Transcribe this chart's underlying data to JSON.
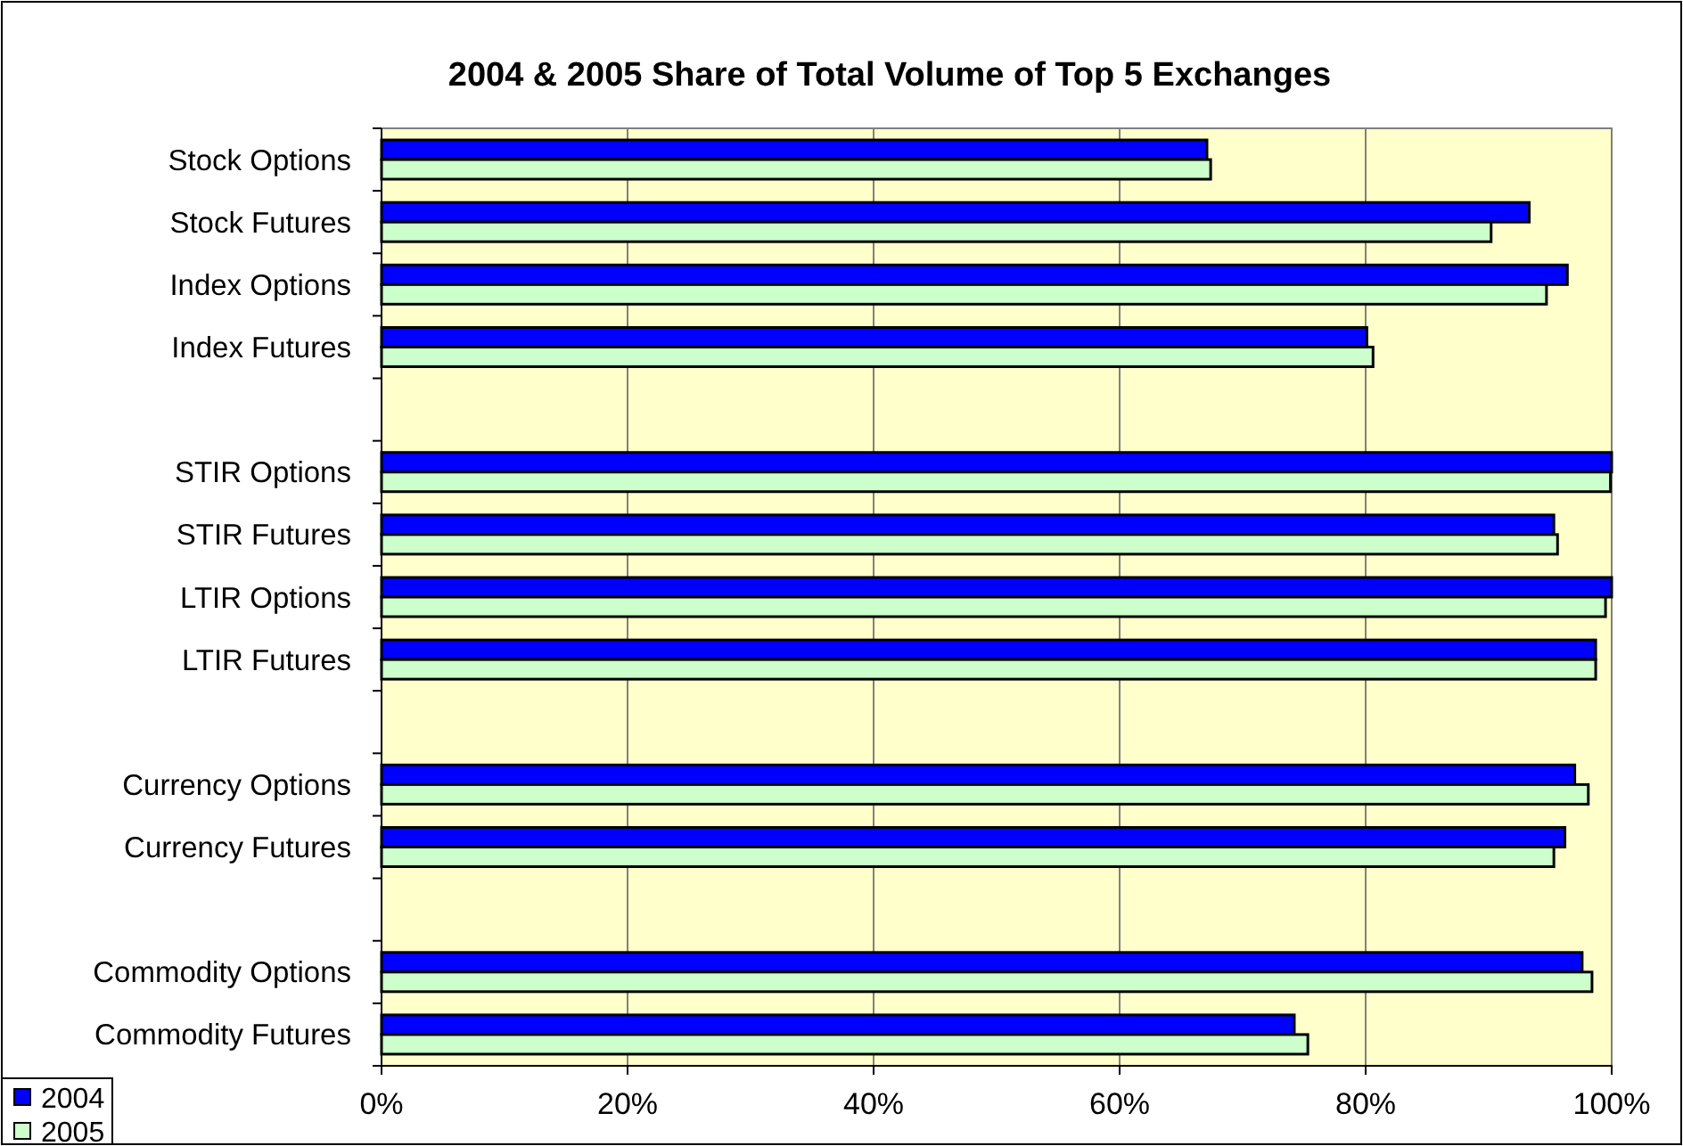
{
  "chart_data": {
    "type": "bar",
    "orientation": "horizontal",
    "title": "2004 & 2005 Share of Total Volume of Top 5 Exchanges",
    "categories": [
      "Stock Options",
      "Stock Futures",
      "Index Options",
      "Index Futures",
      null,
      "STIR Options",
      "STIR Futures",
      "LTIR Options",
      "LTIR Futures",
      null,
      "Currency Options",
      "Currency Futures",
      null,
      "Commodity Options",
      "Commodity Futures"
    ],
    "series": [
      {
        "name": "2004",
        "color": "#0000ff",
        "values": [
          67.1,
          93.3,
          96.4,
          80.1,
          null,
          100,
          95.3,
          100,
          98.7,
          null,
          97.0,
          96.2,
          null,
          97.6,
          74.2
        ]
      },
      {
        "name": "2005",
        "color": "#ccffcc",
        "values": [
          67.4,
          90.2,
          94.7,
          80.6,
          null,
          99.9,
          95.6,
          99.5,
          98.7,
          null,
          98.1,
          95.3,
          null,
          98.4,
          75.3
        ]
      }
    ],
    "xlim": [
      0,
      100
    ],
    "xticks": [
      {
        "value": 0,
        "label": "0%"
      },
      {
        "value": 20,
        "label": "20%"
      },
      {
        "value": 40,
        "label": "40%"
      },
      {
        "value": 60,
        "label": "60%"
      },
      {
        "value": 80,
        "label": "80%"
      },
      {
        "value": 100,
        "label": "100%"
      }
    ],
    "grid": "x",
    "legend": "bottom left"
  }
}
